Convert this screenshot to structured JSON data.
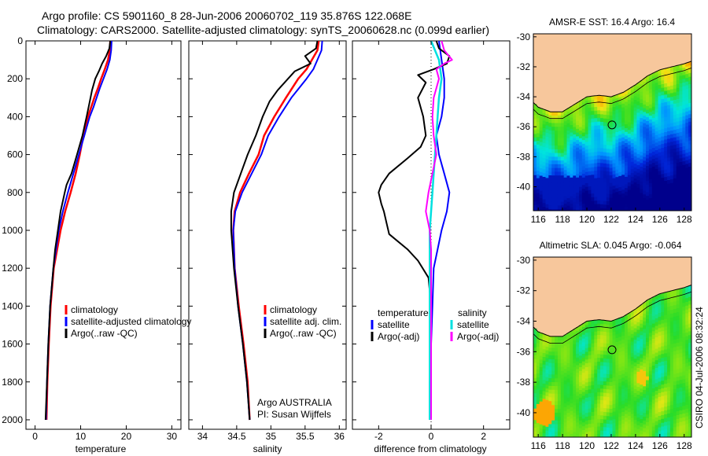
{
  "header": {
    "line1": "Argo profile: CS 5901160_8 28-Jun-2006 20060702_119 35.876S 122.068E",
    "line2": "Climatology: CARS2000. Satellite-adjusted climatology: synTS_20060628.nc (0.099d earlier)"
  },
  "credit": "CSIRO 04-Jul-2006 08:32:24",
  "colors": {
    "climatology": "#ff0000",
    "satellite": "#0000ff",
    "argo": "#000000",
    "sat_diff": "#00e0e0",
    "argo_sal_diff": "#ff00ff",
    "land": "#f7c79c"
  },
  "chart_data": [
    {
      "type": "line",
      "panel": "temperature",
      "xlabel": "temperature",
      "xlim": [
        -2,
        32
      ],
      "ylim": [
        2050,
        0
      ],
      "xticks": [
        "0",
        "10",
        "20",
        "30"
      ],
      "yticks": [
        "0",
        "200",
        "400",
        "600",
        "800",
        "1000",
        "1200",
        "1400",
        "1600",
        "1800",
        "2000"
      ],
      "legend": [
        "climatology",
        "satellite-adjusted climatology",
        "Argo(..raw -QC)"
      ],
      "series": [
        {
          "name": "climatology",
          "y": [
            0,
            50,
            100,
            150,
            200,
            250,
            300,
            350,
            400,
            450,
            500,
            600,
            700,
            800,
            900,
            1000,
            1200,
            1400,
            1600,
            1800,
            2000
          ],
          "x": [
            16.5,
            16.4,
            16.0,
            15.3,
            14.5,
            13.8,
            13.0,
            12.3,
            11.6,
            11.1,
            10.6,
            9.8,
            8.9,
            7.8,
            6.6,
            5.6,
            4.1,
            3.4,
            3.0,
            2.7,
            2.5
          ]
        },
        {
          "name": "satellite-adjusted climatology",
          "y": [
            0,
            50,
            100,
            150,
            200,
            250,
            300,
            350,
            400,
            450,
            500,
            600,
            700,
            800,
            900,
            1000,
            1200,
            1400,
            1600,
            1800,
            2000
          ],
          "x": [
            16.8,
            16.7,
            16.4,
            15.8,
            15.0,
            14.2,
            13.5,
            12.8,
            12.0,
            11.4,
            10.8,
            9.6,
            8.4,
            7.2,
            6.1,
            5.2,
            4.0,
            3.3,
            2.9,
            2.6,
            2.4
          ]
        },
        {
          "name": "Argo(..raw -QC)",
          "y": [
            0,
            40,
            80,
            120,
            160,
            200,
            260,
            320,
            400,
            500,
            600,
            700,
            760,
            800,
            900,
            1000,
            1100,
            1200,
            1400,
            1600,
            1800,
            2000
          ],
          "x": [
            16.5,
            16.3,
            15.6,
            14.7,
            14.0,
            13.2,
            12.5,
            12.0,
            11.3,
            10.4,
            9.2,
            8.0,
            6.9,
            6.5,
            5.6,
            5.0,
            4.4,
            4.0,
            3.3,
            2.9,
            2.6,
            2.3
          ]
        }
      ]
    },
    {
      "type": "line",
      "panel": "salinity",
      "xlabel": "salinity",
      "xlim": [
        33.8,
        36.1
      ],
      "ylim": [
        2050,
        0
      ],
      "xticks": [
        "34",
        "34.5",
        "35",
        "35.5",
        "36"
      ],
      "legend": [
        "climatology",
        "satellite adj. clim.",
        "Argo(..raw -QC)"
      ],
      "annotation": [
        "Argo AUSTRALIA",
        "PI: Susan Wijffels"
      ],
      "series": [
        {
          "name": "climatology",
          "y": [
            0,
            50,
            100,
            150,
            200,
            300,
            400,
            500,
            600,
            700,
            800,
            900,
            1000,
            1200,
            1400,
            1600,
            1800,
            2000
          ],
          "x": [
            35.7,
            35.68,
            35.6,
            35.52,
            35.4,
            35.22,
            35.05,
            34.9,
            34.82,
            34.68,
            34.55,
            34.47,
            34.45,
            34.47,
            34.53,
            34.6,
            34.66,
            34.69
          ]
        },
        {
          "name": "satellite adj. clim.",
          "y": [
            0,
            50,
            100,
            150,
            200,
            300,
            400,
            500,
            600,
            700,
            800,
            900,
            1000,
            1200,
            1400,
            1600,
            1800,
            2000
          ],
          "x": [
            35.75,
            35.74,
            35.68,
            35.62,
            35.52,
            35.3,
            35.12,
            34.96,
            34.86,
            34.72,
            34.58,
            34.48,
            34.45,
            34.47,
            34.52,
            34.59,
            34.65,
            34.69
          ]
        },
        {
          "name": "Argo(..raw -QC)",
          "y": [
            0,
            40,
            80,
            120,
            160,
            200,
            260,
            320,
            400,
            500,
            600,
            700,
            760,
            800,
            900,
            1000,
            1200,
            1400,
            1600,
            1800,
            2000
          ],
          "x": [
            35.68,
            35.66,
            35.5,
            35.58,
            35.35,
            35.25,
            35.1,
            34.98,
            34.88,
            34.78,
            34.66,
            34.56,
            34.5,
            34.46,
            34.42,
            34.42,
            34.46,
            34.52,
            34.59,
            34.65,
            34.69
          ]
        }
      ]
    },
    {
      "type": "line",
      "panel": "difference",
      "xlabel": "difference from climatology",
      "xlim": [
        -3,
        3
      ],
      "ylim": [
        2050,
        0
      ],
      "xticks": [
        "-2",
        "0",
        "2"
      ],
      "legend_groups": [
        {
          "title": "temperature",
          "items": [
            "satellite",
            "Argo(-adj)"
          ]
        },
        {
          "title": "salinity",
          "items": [
            "satellite",
            "Argo(-adj)"
          ]
        }
      ],
      "series": [
        {
          "name": "temperature satellite",
          "y": [
            0,
            100,
            200,
            300,
            400,
            500,
            600,
            700,
            800,
            900,
            1000,
            1200,
            1400,
            1600,
            1800,
            2000
          ],
          "x": [
            0.3,
            0.4,
            0.5,
            0.5,
            0.4,
            0.2,
            0.3,
            0.5,
            0.7,
            0.6,
            0.4,
            0.1,
            0.05,
            0.0,
            -0.05,
            -0.05
          ]
        },
        {
          "name": "temperature Argo(-adj)",
          "y": [
            0,
            40,
            80,
            120,
            150,
            180,
            220,
            300,
            400,
            500,
            560,
            620,
            700,
            760,
            800,
            860,
            900,
            960,
            1020,
            1100,
            1160,
            1250,
            1400,
            1600,
            1800,
            2000
          ],
          "x": [
            0.2,
            0.3,
            0.7,
            0.6,
            0.1,
            -0.5,
            -0.2,
            -0.5,
            -0.3,
            -0.2,
            -0.4,
            -0.9,
            -1.6,
            -1.9,
            -2.0,
            -1.9,
            -1.8,
            -1.7,
            -1.6,
            -0.9,
            -0.5,
            -0.1,
            0.0,
            0.0,
            0.0,
            0.0
          ]
        },
        {
          "name": "salinity satellite",
          "y": [
            0,
            100,
            200,
            300,
            400,
            500,
            600,
            700,
            800,
            900,
            1000,
            1100,
            1200,
            1400,
            1600,
            1800,
            2000
          ],
          "x": [
            0.0,
            0.3,
            0.4,
            0.3,
            0.25,
            0.2,
            0.15,
            0.1,
            0.05,
            0.0,
            -0.05,
            -0.05,
            -0.05,
            -0.05,
            -0.05,
            -0.05,
            -0.05
          ]
        },
        {
          "name": "salinity Argo(-adj)",
          "y": [
            0,
            50,
            100,
            120,
            150,
            200,
            250,
            300,
            400,
            500,
            600,
            700,
            800,
            900,
            1000,
            1100,
            1400,
            1600,
            1800,
            2000
          ],
          "x": [
            0.4,
            0.5,
            0.8,
            0.5,
            0.2,
            0.3,
            0.2,
            0.1,
            0.05,
            0.1,
            0.2,
            0.05,
            -0.1,
            -0.2,
            -0.05,
            0.0,
            0.0,
            0.0,
            0.0,
            0.0
          ]
        }
      ]
    },
    {
      "type": "heatmap",
      "title": "AMSR-E SST: 16.4  Argo: 16.4",
      "xlim": [
        115.6,
        128.6
      ],
      "ylim": [
        -41.6,
        -29.8
      ],
      "xticks": [
        "116",
        "118",
        "120",
        "122",
        "124",
        "126",
        "128"
      ],
      "yticks": [
        "-30",
        "-32",
        "-34",
        "-36",
        "-38",
        "-40"
      ],
      "float_position": {
        "lon": 122.068,
        "lat": -35.876
      }
    },
    {
      "type": "heatmap",
      "title": "Altimetric SLA: 0.045  Argo: -0.064",
      "xlim": [
        115.6,
        128.6
      ],
      "ylim": [
        -41.6,
        -29.8
      ],
      "xticks": [
        "116",
        "118",
        "120",
        "122",
        "124",
        "126",
        "128"
      ],
      "yticks": [
        "-30",
        "-32",
        "-34",
        "-36",
        "-38",
        "-40"
      ],
      "float_position": {
        "lon": 122.068,
        "lat": -35.876
      }
    }
  ]
}
